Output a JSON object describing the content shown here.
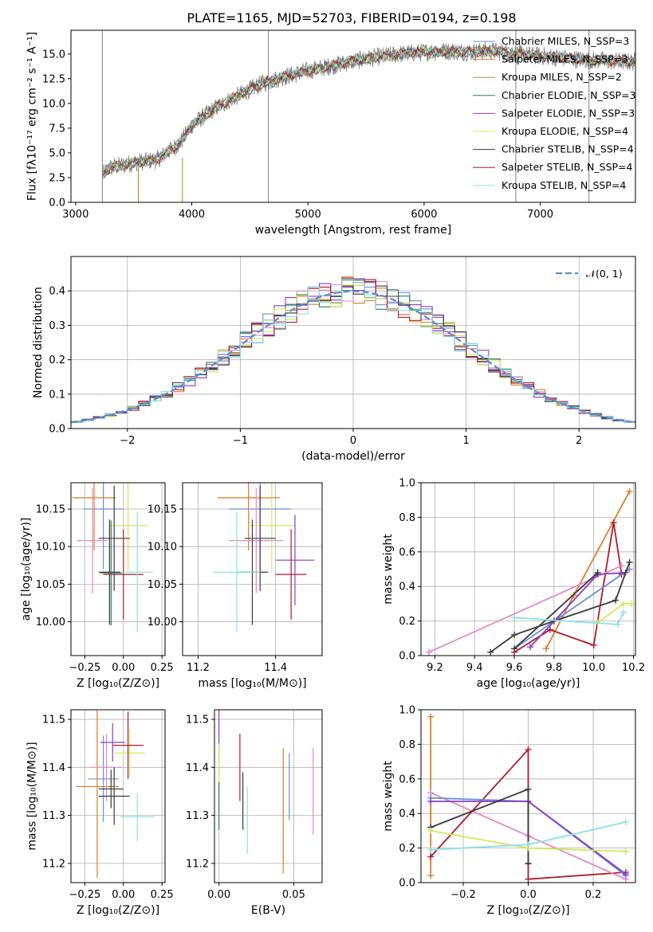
{
  "figure": {
    "title": "PLATE=1165, MJD=52703, FIBERID=0194, z=0.198"
  },
  "chart_data": [
    {
      "name": "spectrum",
      "type": "line",
      "xlabel": "wavelength [Angstrom, rest frame]",
      "ylabel": "Flux [fλ10⁻¹⁷ erg cm⁻² s⁻¹ A⁻¹]",
      "xlim": [
        2960,
        7820
      ],
      "ylim": [
        0,
        17.4
      ],
      "xticks": [
        3000,
        4000,
        5000,
        6000,
        7000
      ],
      "yticks": [
        0.0,
        2.5,
        5.0,
        7.5,
        10.0,
        12.5,
        15.0
      ],
      "ytick_labels": [
        "0.0",
        "2.5",
        "5.0",
        "7.5",
        "10.0",
        "12.5",
        "15.0"
      ],
      "grid": false,
      "legend_position": "top-right",
      "continuum": {
        "x": [
          3230,
          3300,
          3500,
          3700,
          3900,
          4000,
          4200,
          4400,
          4600,
          4800,
          5000,
          5200,
          5400,
          5600,
          5800,
          6000,
          6200,
          6400,
          6600,
          6800,
          7000,
          7200,
          7400,
          7800
        ],
        "y": [
          2.8,
          3.5,
          4.0,
          4.3,
          6.0,
          7.8,
          9.5,
          10.8,
          12.0,
          12.7,
          13.3,
          13.8,
          14.3,
          14.7,
          15.0,
          15.2,
          15.3,
          15.2,
          15.3,
          15.0,
          14.8,
          14.6,
          14.4,
          14.2
        ]
      },
      "series": [
        {
          "name": "Chabrier MILES, N_SSP=3",
          "color": "#6a8fd8"
        },
        {
          "name": "Salpeter MILES, N_SSP=3",
          "color": "#e07b2a"
        },
        {
          "name": "Kroupa MILES, N_SSP=2",
          "color": "#a89a3a"
        },
        {
          "name": "Chabrier ELODIE, N_SSP=3",
          "color": "#2e7d5a"
        },
        {
          "name": "Salpeter ELODIE, N_SSP=3",
          "color": "#8a3fbf"
        },
        {
          "name": "Kroupa ELODIE, N_SSP=4",
          "color": "#d4e85a"
        },
        {
          "name": "Chabrier STELIB, N_SSP=4",
          "color": "#3a3a3a"
        },
        {
          "name": "Salpeter STELIB, N_SSP=4",
          "color": "#b01c2a"
        },
        {
          "name": "Kroupa STELIB, N_SSP=4",
          "color": "#8ee0e6"
        }
      ],
      "data_color": "#808080"
    },
    {
      "name": "residuals",
      "type": "histogram",
      "xlabel": "(data-model)/error",
      "ylabel": "Normed distribution",
      "xlim": [
        -2.5,
        2.5
      ],
      "ylim": [
        0,
        0.5
      ],
      "xticks": [
        -2,
        -1,
        0,
        1,
        2
      ],
      "xtick_labels": [
        "−2",
        "−1",
        "0",
        "1",
        "2"
      ],
      "yticks": [
        0.0,
        0.1,
        0.2,
        0.3,
        0.4
      ],
      "ytick_labels": [
        "0.0",
        "0.1",
        "0.2",
        "0.3",
        "0.4"
      ],
      "grid": true,
      "legend": "𝒩(0, 1)",
      "legend_position": "top-right",
      "gaussian_color": "#5b8fd6",
      "bin_width": 0.1,
      "series_colors": [
        "#6a8fd8",
        "#e07b2a",
        "#e88abf",
        "#2e7d5a",
        "#8a3fbf",
        "#d4e85a",
        "#3a3a3a",
        "#b01c2a",
        "#8ee0e6"
      ]
    },
    {
      "name": "age-vs-Z",
      "type": "errorbar",
      "xlabel": "Z [log₁₀(Z/Z⊙)]",
      "ylabel": "age  [log₁₀(age/yr)]",
      "xlim": [
        -0.34,
        0.27
      ],
      "ylim": [
        9.955,
        10.185
      ],
      "xticks": [
        -0.25,
        0.0,
        0.25
      ],
      "xtick_labels": [
        "−0.25",
        "0.00",
        "0.25"
      ],
      "yticks": [
        10.0,
        10.05,
        10.1,
        10.15
      ],
      "ytick_labels": [
        "10.00",
        "10.05",
        "10.10",
        "10.15"
      ],
      "grid": true,
      "points": [
        {
          "x": -0.13,
          "xerr": 0.13,
          "y": 10.15,
          "yerr": 0.08,
          "color": "#6a8fd8"
        },
        {
          "x": -0.19,
          "xerr": 0.14,
          "y": 10.165,
          "yerr": 0.07,
          "color": "#e07b2a"
        },
        {
          "x": -0.2,
          "xerr": 0.1,
          "y": 10.108,
          "yerr": 0.07,
          "color": "#e88abf"
        },
        {
          "x": 0.03,
          "xerr": 0.13,
          "y": 10.128,
          "yerr": 0.06,
          "color": "#d4e85a"
        },
        {
          "x": -0.09,
          "xerr": 0.07,
          "y": 10.066,
          "yerr": 0.07,
          "color": "#3a3a3a"
        },
        {
          "x": -0.06,
          "xerr": 0.1,
          "y": 10.111,
          "yerr": 0.07,
          "color": "#3a3a3a"
        },
        {
          "x": 0.0,
          "xerr": 0.13,
          "y": 10.063,
          "yerr": 0.06,
          "color": "#b01c2a"
        },
        {
          "x": 0.09,
          "xerr": 0.1,
          "y": 10.066,
          "yerr": 0.08,
          "color": "#8ee0e6"
        },
        {
          "x": -0.08,
          "xerr": 0.07,
          "y": 10.065,
          "yerr": 0.07,
          "color": "#2e7d5a"
        }
      ]
    },
    {
      "name": "age-vs-mass",
      "type": "errorbar",
      "xlabel": "mass [log₁₀(M/M⊙)]",
      "ylabel": "",
      "xlim": [
        11.16,
        11.52
      ],
      "ylim": [
        9.955,
        10.185
      ],
      "xticks": [
        11.2,
        11.4
      ],
      "xtick_labels": [
        "11.2",
        "11.4"
      ],
      "yticks": [
        10.0,
        10.05,
        10.1,
        10.15
      ],
      "ytick_labels": [
        "10.00",
        "10.05",
        "10.10",
        "10.15"
      ],
      "grid": true,
      "points": [
        {
          "x": 11.36,
          "xerr": 0.08,
          "y": 10.15,
          "yerr": 0.08,
          "color": "#6a8fd8"
        },
        {
          "x": 11.33,
          "xerr": 0.08,
          "y": 10.165,
          "yerr": 0.07,
          "color": "#e07b2a"
        },
        {
          "x": 11.35,
          "xerr": 0.07,
          "y": 10.108,
          "yerr": 0.07,
          "color": "#e88abf"
        },
        {
          "x": 11.39,
          "xerr": 0.06,
          "y": 10.128,
          "yerr": 0.06,
          "color": "#d4e85a"
        },
        {
          "x": 11.34,
          "xerr": 0.04,
          "y": 10.066,
          "yerr": 0.07,
          "color": "#3a3a3a"
        },
        {
          "x": 11.36,
          "xerr": 0.04,
          "y": 10.111,
          "yerr": 0.07,
          "color": "#3a3a3a"
        },
        {
          "x": 11.44,
          "xerr": 0.04,
          "y": 10.063,
          "yerr": 0.06,
          "color": "#b01c2a"
        },
        {
          "x": 11.3,
          "xerr": 0.06,
          "y": 10.066,
          "yerr": 0.08,
          "color": "#8ee0e6"
        },
        {
          "x": 11.45,
          "xerr": 0.05,
          "y": 10.082,
          "yerr": 0.06,
          "color": "#8a3fbf"
        }
      ]
    },
    {
      "name": "mass-weight-vs-age",
      "type": "line",
      "xlabel": "age  [log₁₀(age/yr)]",
      "ylabel": "mass weight",
      "xlim": [
        9.13,
        10.21
      ],
      "ylim": [
        0,
        1
      ],
      "xticks": [
        9.2,
        9.4,
        9.6,
        9.8,
        10.0,
        10.2
      ],
      "xtick_labels": [
        "9.2",
        "9.4",
        "9.6",
        "9.8",
        "10.0",
        "10.2"
      ],
      "yticks": [
        0.0,
        0.2,
        0.4,
        0.6,
        0.8,
        1.0
      ],
      "ytick_labels": [
        "0.0",
        "0.2",
        "0.4",
        "0.6",
        "0.8",
        "1.0"
      ],
      "grid": true,
      "series": [
        {
          "color": "#e07b2a",
          "x": [
            9.76,
            9.9,
            10.18
          ],
          "y": [
            0.04,
            0.35,
            0.95
          ]
        },
        {
          "color": "#b01c2a",
          "x": [
            9.6,
            9.78,
            10.0,
            10.1,
            10.14
          ],
          "y": [
            0.02,
            0.15,
            0.06,
            0.77,
            0.47
          ]
        },
        {
          "color": "#e88abf",
          "x": [
            9.17,
            10.14
          ],
          "y": [
            0.02,
            0.52
          ]
        },
        {
          "color": "#6a8fd8",
          "x": [
            9.6,
            10.18
          ],
          "y": [
            0.04,
            0.5
          ]
        },
        {
          "color": "#8a3fbf",
          "x": [
            9.68,
            10.02,
            10.16
          ],
          "y": [
            0.05,
            0.47,
            0.48
          ]
        },
        {
          "color": "#3a3a3a",
          "x": [
            9.48,
            9.6,
            9.8,
            10.11,
            10.18
          ],
          "y": [
            0.02,
            0.12,
            0.2,
            0.32,
            0.54
          ]
        },
        {
          "color": "#3a3a3a",
          "x": [
            9.6,
            10.02
          ],
          "y": [
            0.04,
            0.48
          ]
        },
        {
          "color": "#d4e85a",
          "x": [
            10.02,
            10.15,
            10.19
          ],
          "y": [
            0.19,
            0.3,
            0.3
          ]
        },
        {
          "color": "#8ee0e6",
          "x": [
            9.6,
            10.12,
            10.15
          ],
          "y": [
            0.22,
            0.18,
            0.25
          ]
        }
      ]
    },
    {
      "name": "mass-vs-Z",
      "type": "errorbar",
      "xlabel": "Z [log₁₀(Z/Z⊙)]",
      "ylabel": "mass [log₁₀(M/M⊙)]",
      "xlim": [
        -0.34,
        0.27
      ],
      "ylim": [
        11.16,
        11.52
      ],
      "xticks": [
        -0.25,
        0.0,
        0.25
      ],
      "xtick_labels": [
        "−0.25",
        "0.00",
        "0.25"
      ],
      "yticks": [
        11.2,
        11.3,
        11.4,
        11.5
      ],
      "ytick_labels": [
        "11.2",
        "11.3",
        "11.4",
        "11.5"
      ],
      "grid": true,
      "points": [
        {
          "x": -0.13,
          "xerr": 0.1,
          "y": 11.376,
          "yerr": 0.09,
          "color": "#6a8fd8"
        },
        {
          "x": -0.17,
          "xerr": 0.14,
          "y": 11.36,
          "yerr": 0.19,
          "color": "#e07b2a"
        },
        {
          "x": -0.11,
          "xerr": 0.1,
          "y": 11.4,
          "yerr": 0.07,
          "color": "#e88abf"
        },
        {
          "x": 0.04,
          "xerr": 0.1,
          "y": 11.43,
          "yerr": 0.05,
          "color": "#d4e85a"
        },
        {
          "x": -0.06,
          "xerr": 0.1,
          "y": 11.34,
          "yerr": 0.06,
          "color": "#3a3a3a"
        },
        {
          "x": 0.03,
          "xerr": 0.1,
          "y": 11.446,
          "yerr": 0.07,
          "color": "#b01c2a"
        },
        {
          "x": 0.09,
          "xerr": 0.11,
          "y": 11.297,
          "yerr": 0.05,
          "color": "#8ee0e6"
        },
        {
          "x": -0.08,
          "xerr": 0.08,
          "y": 11.355,
          "yerr": 0.04,
          "color": "#3a3a3a"
        },
        {
          "x": -0.07,
          "xerr": 0.08,
          "y": 11.452,
          "yerr": 0.04,
          "color": "#8a3fbf"
        }
      ]
    },
    {
      "name": "mass-vs-EBV",
      "type": "errorbar",
      "xlabel": "E(B-V)",
      "ylabel": "",
      "xlim": [
        -0.003,
        0.069
      ],
      "ylim": [
        11.16,
        11.52
      ],
      "xticks": [
        0.0,
        0.05
      ],
      "xtick_labels": [
        "0.00",
        "0.05"
      ],
      "yticks": [
        11.2,
        11.3,
        11.4,
        11.5
      ],
      "ytick_labels": [
        "11.2",
        "11.3",
        "11.4",
        "11.5"
      ],
      "grid": true,
      "points": [
        {
          "x": 0.0,
          "y": 11.47,
          "yerr": 0.05,
          "color": "#8a3fbf"
        },
        {
          "x": 0.0,
          "y": 11.4,
          "yerr": 0.05,
          "color": "#d4e85a"
        },
        {
          "x": 0.0,
          "y": 11.32,
          "yerr": 0.05,
          "color": "#2e7d5a"
        },
        {
          "x": 0.014,
          "y": 11.4,
          "yerr": 0.07,
          "color": "#b01c2a"
        },
        {
          "x": 0.016,
          "y": 11.33,
          "yerr": 0.06,
          "color": "#3a3a3a"
        },
        {
          "x": 0.019,
          "y": 11.29,
          "yerr": 0.07,
          "color": "#8ee0e6"
        },
        {
          "x": 0.043,
          "y": 11.31,
          "yerr": 0.13,
          "color": "#e07b2a"
        },
        {
          "x": 0.047,
          "y": 11.36,
          "yerr": 0.07,
          "color": "#6a8fd8"
        },
        {
          "x": 0.063,
          "y": 11.35,
          "yerr": 0.09,
          "color": "#e88abf"
        }
      ]
    },
    {
      "name": "mass-weight-vs-Z",
      "type": "line",
      "xlabel": "Z [log₁₀(Z/Z⊙)]",
      "ylabel": "mass weight",
      "xlim": [
        -0.33,
        0.33
      ],
      "ylim": [
        0,
        1
      ],
      "xticks": [
        -0.2,
        0.0,
        0.2
      ],
      "xtick_labels": [
        "−0.2",
        "0.0",
        "0.2"
      ],
      "yticks": [
        0.0,
        0.2,
        0.4,
        0.6,
        0.8,
        1.0
      ],
      "ytick_labels": [
        "0.0",
        "0.2",
        "0.4",
        "0.6",
        "0.8",
        "1.0"
      ],
      "grid": true,
      "series": [
        {
          "color": "#e07b2a",
          "x": [
            -0.3,
            -0.3
          ],
          "y": [
            0.04,
            0.96
          ]
        },
        {
          "color": "#b01c2a",
          "x": [
            -0.3,
            0.0,
            0.0,
            0.0,
            0.3
          ],
          "y": [
            0.15,
            0.77,
            0.11,
            0.02,
            0.06
          ]
        },
        {
          "color": "#e88abf",
          "x": [
            -0.3,
            0.0,
            0.3
          ],
          "y": [
            0.52,
            0.27,
            0.02
          ]
        },
        {
          "color": "#6a8fd8",
          "x": [
            -0.3,
            0.0,
            0.3
          ],
          "y": [
            0.49,
            0.47,
            0.04
          ]
        },
        {
          "color": "#8a3fbf",
          "x": [
            -0.3,
            0.0,
            0.3
          ],
          "y": [
            0.47,
            0.47,
            0.05
          ]
        },
        {
          "color": "#3a3a3a",
          "x": [
            -0.3,
            0.0,
            0.0
          ],
          "y": [
            0.32,
            0.54,
            0.11
          ]
        },
        {
          "color": "#d4e85a",
          "x": [
            -0.3,
            0.0,
            0.3
          ],
          "y": [
            0.3,
            0.2,
            0.18
          ]
        },
        {
          "color": "#8ee0e6",
          "x": [
            -0.3,
            0.0,
            0.3
          ],
          "y": [
            0.19,
            0.22,
            0.35
          ]
        }
      ]
    }
  ]
}
